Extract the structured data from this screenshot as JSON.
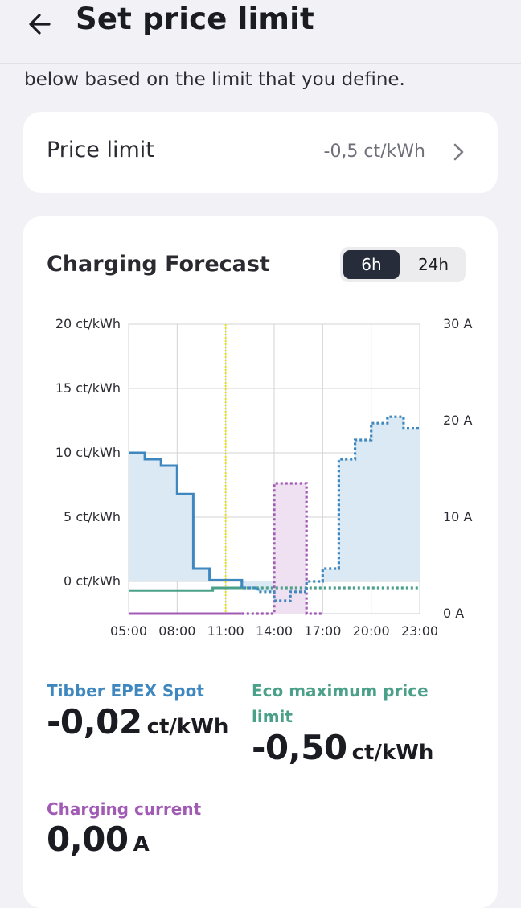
{
  "header": {
    "title": "Set price limit"
  },
  "intro_text": "below based on the limit that you define.",
  "price_limit": {
    "label": "Price limit",
    "value": "-0,5 ct/kWh"
  },
  "forecast": {
    "title": "Charging Forecast",
    "range_options": [
      "6h",
      "24h"
    ],
    "selected_range": "6h"
  },
  "colors": {
    "spot": "#3f88bf",
    "spot_fill": "#dbe9f4",
    "eco": "#4aa088",
    "current": "#a15bb5",
    "current_fill": "#efe1f1",
    "now_marker": "#e6e020"
  },
  "chart_data": {
    "type": "line",
    "x_ticks": [
      "05:00",
      "08:00",
      "11:00",
      "14:00",
      "17:00",
      "20:00",
      "23:00"
    ],
    "y_left": {
      "ticks": [
        "0 ct/kWh",
        "5 ct/kWh",
        "10 ct/kWh",
        "15 ct/kWh",
        "20 ct/kWh"
      ],
      "range": [
        -2.5,
        20
      ]
    },
    "y_right": {
      "ticks": [
        "0 A",
        "10 A",
        "20 A",
        "30 A"
      ],
      "range": [
        0,
        30
      ]
    },
    "now_time": 11.0,
    "series": [
      {
        "name": "Tibber EPEX Spot",
        "unit": "ct/kWh",
        "axis": "left",
        "steps": [
          [
            5,
            10
          ],
          [
            6,
            9.5
          ],
          [
            7,
            9
          ],
          [
            8,
            6.8
          ],
          [
            9,
            1
          ],
          [
            10,
            0.1
          ],
          [
            11,
            0.1
          ],
          [
            12,
            -0.5
          ],
          [
            13,
            -0.8
          ],
          [
            14,
            -1.5
          ],
          [
            15,
            -0.8
          ],
          [
            16,
            0
          ],
          [
            17,
            1
          ],
          [
            18,
            9.5
          ],
          [
            19,
            11
          ],
          [
            20,
            12.3
          ],
          [
            21,
            12.8
          ],
          [
            22,
            11.9
          ]
        ],
        "x_end": 23,
        "actual_until": 12
      },
      {
        "name": "Eco maximum price limit",
        "unit": "ct/kWh",
        "axis": "left",
        "steps": [
          [
            5,
            -0.7
          ],
          [
            10,
            -0.7
          ],
          [
            10.2,
            -0.5
          ]
        ],
        "x_end": 23,
        "actual_until": 12
      },
      {
        "name": "Charging current",
        "unit": "A",
        "axis": "right",
        "steps": [
          [
            5,
            0
          ],
          [
            13,
            0
          ],
          [
            14,
            13.5
          ],
          [
            16,
            0
          ]
        ],
        "x_end": 17,
        "actual_until": 12
      }
    ]
  },
  "metrics": [
    {
      "label": "Tibber EPEX Spot",
      "value": "-0,02",
      "unit": "ct/kWh"
    },
    {
      "label": "Eco maximum price limit",
      "value": "-0,50",
      "unit": "ct/kWh"
    },
    {
      "label": "Charging current",
      "value": "0,00",
      "unit": "A"
    }
  ]
}
